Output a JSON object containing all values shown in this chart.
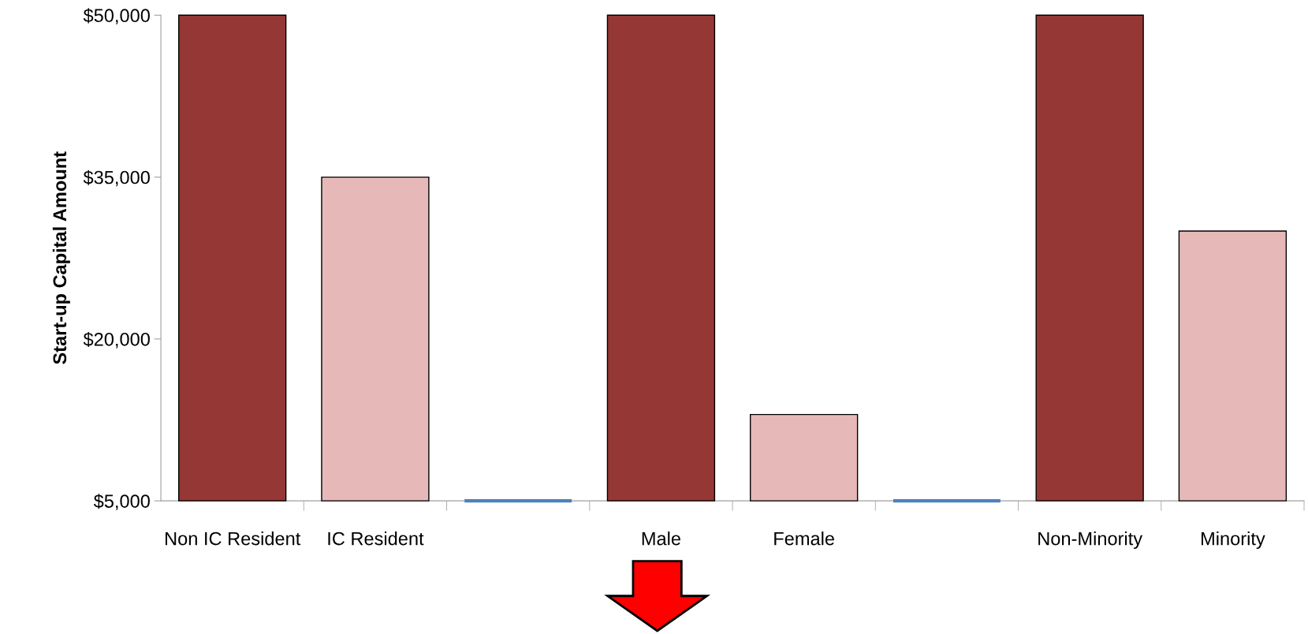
{
  "chart_data": {
    "type": "bar",
    "ylabel": "Start-up Capital Amount",
    "categories": [
      "Non IC Resident",
      "IC Resident",
      null,
      "Male",
      "Female",
      null,
      "Non-Minority",
      "Minority"
    ],
    "values": [
      50000,
      35000,
      5000,
      50000,
      13000,
      5000,
      50000,
      30000
    ],
    "colors": [
      "#953735",
      "#e6b9b8",
      "#4f81bd",
      "#953735",
      "#e6b9b8",
      "#4f81bd",
      "#953735",
      "#e6b9b8"
    ],
    "ylim": [
      5000,
      50000
    ],
    "yticks": [
      {
        "value": 5000,
        "label": "$5,000"
      },
      {
        "value": 20000,
        "label": "$20,000"
      },
      {
        "value": 35000,
        "label": "$35,000"
      },
      {
        "value": 50000,
        "label": "$50,000"
      }
    ],
    "grid": false
  }
}
